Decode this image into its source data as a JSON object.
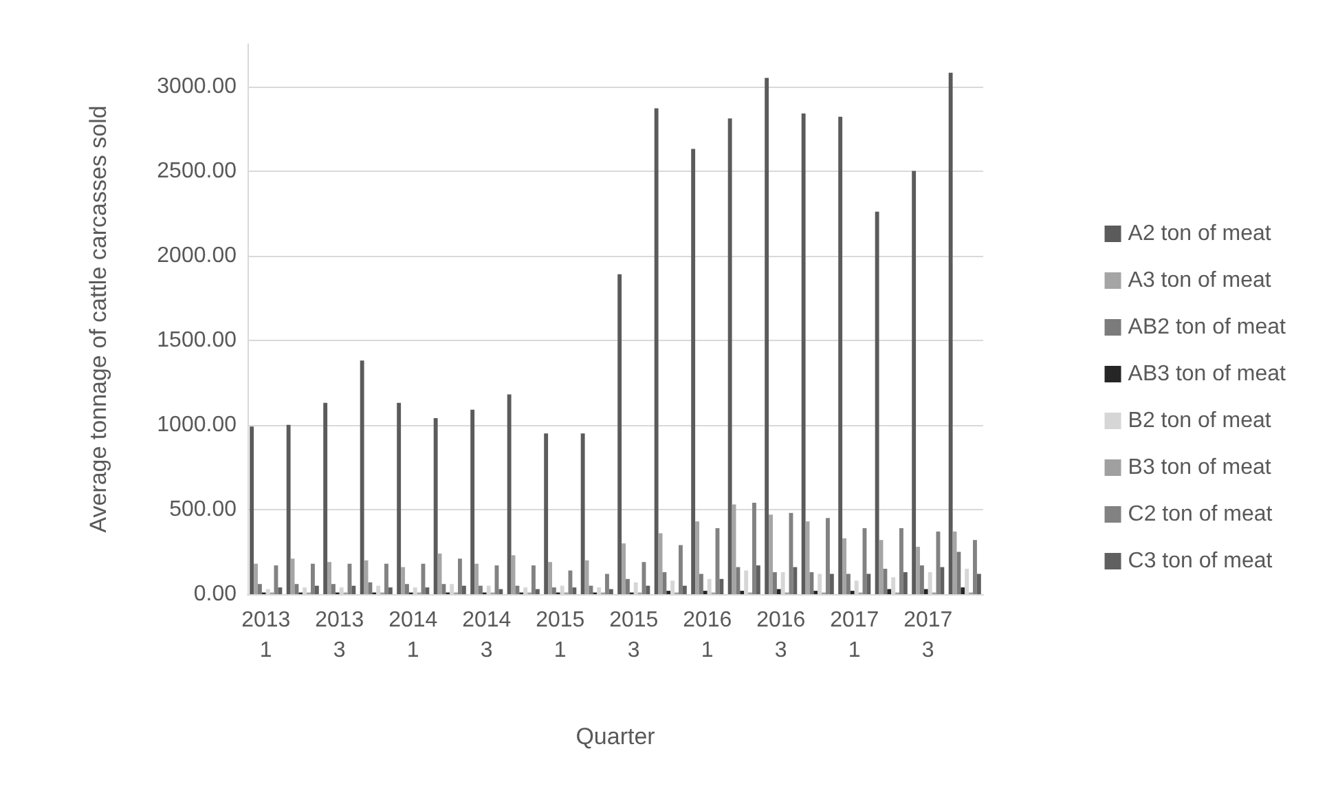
{
  "chart_data": {
    "type": "bar",
    "xlabel": "Quarter",
    "ylabel": "Average tonnage of cattle carcasses sold",
    "categories": [
      "2013 1",
      null,
      "2013 3",
      null,
      "2014 1",
      null,
      "2014 3",
      null,
      "2015 1",
      null,
      "2015 3",
      null,
      "2016 1",
      null,
      "2016 3",
      null,
      "2017 1",
      null,
      "2017 3",
      null
    ],
    "series": [
      {
        "name": "A2 ton of meat",
        "color": "#5b5b5b",
        "values": [
          990,
          1000,
          1130,
          1380,
          1130,
          1040,
          1090,
          1180,
          950,
          950,
          1890,
          2870,
          2630,
          2810,
          3050,
          2840,
          2820,
          2260,
          2500,
          3080
        ]
      },
      {
        "name": "A3 ton of meat",
        "color": "#a5a5a5",
        "values": [
          180,
          210,
          190,
          200,
          160,
          240,
          180,
          230,
          190,
          200,
          300,
          360,
          430,
          530,
          470,
          430,
          330,
          320,
          280,
          370
        ]
      },
      {
        "name": "AB2 ton of meat",
        "color": "#7b7b7b",
        "values": [
          60,
          60,
          60,
          70,
          60,
          60,
          50,
          50,
          40,
          50,
          90,
          130,
          120,
          160,
          130,
          130,
          120,
          150,
          170,
          250
        ]
      },
      {
        "name": "AB3 ton of meat",
        "color": "#262626",
        "values": [
          10,
          10,
          10,
          10,
          10,
          10,
          10,
          10,
          10,
          10,
          10,
          20,
          20,
          20,
          30,
          20,
          20,
          30,
          30,
          40
        ]
      },
      {
        "name": "B2 ton of meat",
        "color": "#d6d6d6",
        "values": [
          30,
          40,
          40,
          50,
          40,
          60,
          50,
          40,
          50,
          40,
          70,
          80,
          90,
          140,
          130,
          120,
          80,
          100,
          130,
          150
        ]
      },
      {
        "name": "B3 ton of meat",
        "color": "#a0a0a0",
        "values": [
          10,
          10,
          10,
          10,
          10,
          10,
          10,
          10,
          10,
          10,
          10,
          10,
          10,
          10,
          10,
          10,
          10,
          10,
          10,
          10
        ]
      },
      {
        "name": "C2 ton of meat",
        "color": "#828282",
        "values": [
          170,
          180,
          180,
          180,
          180,
          210,
          170,
          170,
          140,
          120,
          190,
          290,
          390,
          540,
          480,
          450,
          390,
          390,
          370,
          320
        ]
      },
      {
        "name": "C3 ton of meat",
        "color": "#606060",
        "values": [
          40,
          50,
          50,
          40,
          40,
          50,
          30,
          30,
          40,
          30,
          50,
          50,
          90,
          170,
          160,
          120,
          120,
          130,
          160,
          120
        ]
      }
    ],
    "ylim": [
      0,
      3250
    ],
    "yticks": [
      {
        "value": 0,
        "label": "0.00"
      },
      {
        "value": 500,
        "label": "500.00"
      },
      {
        "value": 1000,
        "label": "1000.00"
      },
      {
        "value": 1500,
        "label": "1500.00"
      },
      {
        "value": 2000,
        "label": "2000.00"
      },
      {
        "value": 2500,
        "label": "2500.00"
      },
      {
        "value": 3000,
        "label": "3000.00"
      }
    ],
    "grid": "y",
    "legend": "right"
  }
}
